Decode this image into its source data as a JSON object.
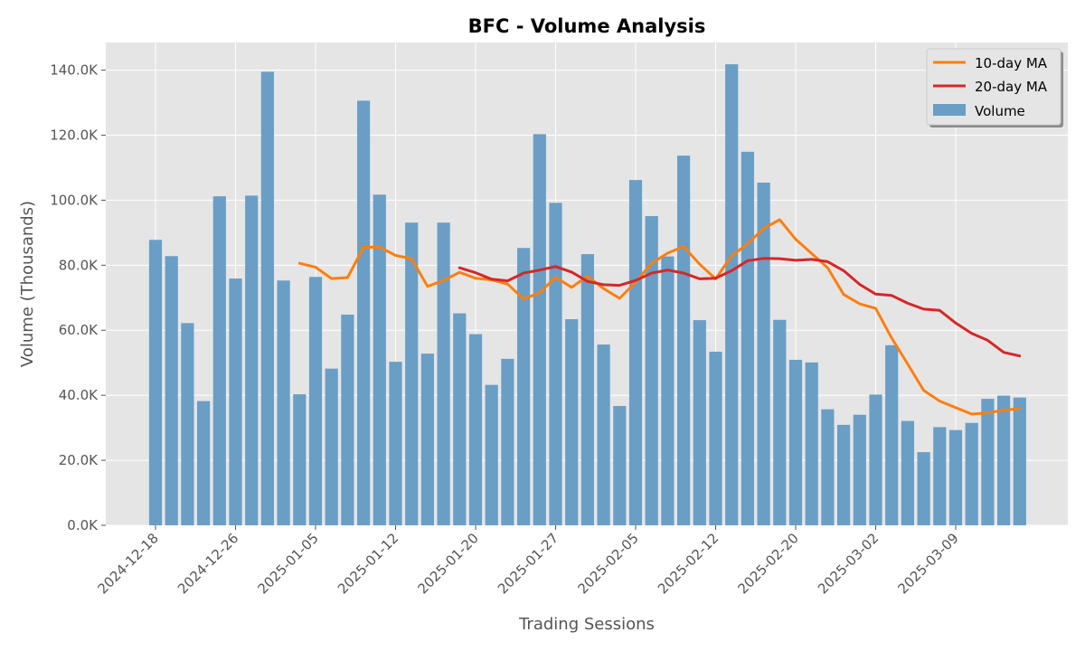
{
  "chart_data": {
    "type": "bar",
    "title": "BFC - Volume Analysis",
    "xlabel": "Trading Sessions",
    "ylabel": "Volume (Thousands)",
    "ylim": [
      0,
      148500
    ],
    "yticks": [
      0,
      20000,
      40000,
      60000,
      80000,
      100000,
      120000,
      140000
    ],
    "ytick_labels": [
      "0.0K",
      "20.0K",
      "40.0K",
      "60.0K",
      "80.0K",
      "100.0K",
      "120.0K",
      "140.0K"
    ],
    "xtick_labels": [
      "2024-12-18",
      "2024-12-26",
      "2025-01-05",
      "2025-01-12",
      "2025-01-20",
      "2025-01-27",
      "2025-02-05",
      "2025-02-12",
      "2025-02-20",
      "2025-03-02",
      "2025-03-09"
    ],
    "xtick_indices": [
      0,
      5,
      10,
      15,
      20,
      25,
      30,
      35,
      40,
      45,
      50
    ],
    "grid": true,
    "legend_position": "top-right",
    "colors": {
      "volume": "#6a9ec5",
      "ma10": "#ff7f0e",
      "ma20": "#d62728",
      "plot_bg": "#e5e5e5"
    },
    "series": [
      {
        "name": "Volume",
        "type": "bar",
        "values": [
          87800,
          82800,
          62200,
          38200,
          101200,
          75900,
          101400,
          139500,
          75300,
          40300,
          76400,
          48200,
          64800,
          130600,
          101700,
          50300,
          93100,
          52800,
          93100,
          65200,
          58800,
          43200,
          51200,
          85300,
          120300,
          99200,
          63400,
          83400,
          55600,
          36700,
          106200,
          95100,
          82700,
          113700,
          63100,
          53400,
          141800,
          114900,
          105400,
          63200,
          50900,
          50100,
          35700,
          30900,
          34000,
          40200,
          55400,
          32100,
          22500,
          30200,
          29300,
          31500,
          38900,
          39900,
          39300
        ]
      },
      {
        "name": "10-day MA",
        "type": "line",
        "values": [
          null,
          null,
          null,
          null,
          null,
          null,
          null,
          null,
          null,
          80600,
          79400,
          75900,
          76200,
          85500,
          85600,
          83000,
          82000,
          73500,
          75300,
          77800,
          76000,
          75500,
          74200,
          69600,
          71500,
          76300,
          73200,
          76600,
          72800,
          69800,
          74800,
          80600,
          83700,
          85800,
          80300,
          75800,
          82900,
          86600,
          91300,
          94000,
          88000,
          83600,
          79200,
          71000,
          68100,
          66700,
          57600,
          49600,
          41500,
          38200,
          36200,
          34200,
          34600,
          35400,
          35900
        ]
      },
      {
        "name": "20-day MA",
        "type": "line",
        "values": [
          null,
          null,
          null,
          null,
          null,
          null,
          null,
          null,
          null,
          null,
          null,
          null,
          null,
          null,
          null,
          null,
          null,
          null,
          null,
          79200,
          77700,
          75700,
          75200,
          77600,
          78500,
          79600,
          77900,
          75000,
          74000,
          73800,
          75300,
          77600,
          78500,
          77600,
          75800,
          76000,
          78300,
          81400,
          82100,
          82000,
          81500,
          81800,
          81100,
          78300,
          74100,
          71100,
          70700,
          68300,
          66500,
          66100,
          62200,
          59000,
          56900,
          53200,
          52100
        ]
      }
    ]
  }
}
